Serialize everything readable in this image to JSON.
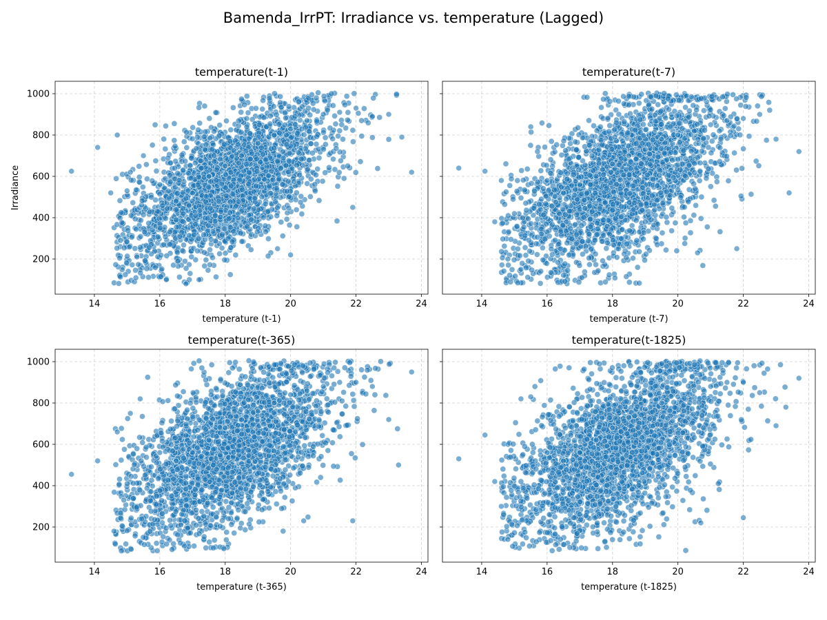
{
  "figure": {
    "title": "Bamenda_IrrPT: Irradiance vs. temperature (Lagged)"
  },
  "chart_data": [
    {
      "type": "scatter",
      "title": "temperature(t-1)",
      "xlabel": "temperature (t-1)",
      "ylabel": "Irradiance",
      "xlim": [
        12.8,
        24.2
      ],
      "ylim": [
        30,
        1060
      ],
      "xticks": [
        14,
        16,
        18,
        20,
        22,
        24
      ],
      "yticks": [
        200,
        400,
        600,
        800,
        1000
      ],
      "grid": true,
      "point_color": "#1f77b4",
      "point_count": 8000,
      "trend": "positive correlation, dense cloud from (15,500) to (22,900)",
      "series": [
        {
          "x": [
            13.3,
            14.1,
            14.5,
            14.7,
            14.8,
            15.0,
            15.1,
            15.3,
            15.5,
            16.0,
            16.5,
            17.0,
            17.5,
            18.0,
            18.5,
            19.0,
            19.5,
            20.0,
            20.5,
            21.0,
            21.5,
            22.0,
            22.5,
            23.0,
            23.4,
            23.7,
            20.0,
            21.9,
            16.2,
            16.8,
            17.2,
            19.6
          ],
          "y": [
            625,
            740,
            520,
            800,
            290,
            530,
            620,
            210,
            700,
            560,
            480,
            520,
            600,
            650,
            700,
            760,
            800,
            830,
            870,
            900,
            910,
            930,
            890,
            900,
            790,
            620,
            220,
            450,
            100,
            80,
            100,
            250
          ]
        }
      ]
    },
    {
      "type": "scatter",
      "title": "temperature(t-7)",
      "xlabel": "temperature (t-7)",
      "ylabel": "",
      "xlim": [
        12.8,
        24.2
      ],
      "ylim": [
        30,
        1060
      ],
      "xticks": [
        14,
        16,
        18,
        20,
        22,
        24
      ],
      "yticks": [
        200,
        400,
        600,
        800,
        1000
      ],
      "grid": true,
      "point_color": "#1f77b4",
      "point_count": 8000,
      "trend": "positive correlation, broader spread",
      "series": [
        {
          "x": [
            13.3,
            14.1,
            14.4,
            14.6,
            14.8,
            15.0,
            15.2,
            15.5,
            16.0,
            16.5,
            17.0,
            17.5,
            18.0,
            18.5,
            19.0,
            19.5,
            20.0,
            20.5,
            21.0,
            21.5,
            22.0,
            22.5,
            23.0,
            23.4,
            23.7,
            21.8,
            20.6
          ],
          "y": [
            640,
            625,
            380,
            580,
            200,
            420,
            150,
            840,
            580,
            520,
            560,
            600,
            660,
            700,
            730,
            780,
            800,
            820,
            850,
            870,
            880,
            900,
            780,
            520,
            720,
            250,
            230
          ]
        }
      ]
    },
    {
      "type": "scatter",
      "title": "temperature(t-365)",
      "xlabel": "temperature (t-365)",
      "ylabel": "",
      "xlim": [
        12.8,
        24.2
      ],
      "ylim": [
        30,
        1060
      ],
      "xticks": [
        14,
        16,
        18,
        20,
        22,
        24
      ],
      "yticks": [
        200,
        400,
        600,
        800,
        1000
      ],
      "grid": true,
      "point_color": "#1f77b4",
      "point_count": 8000,
      "trend": "positive correlation",
      "series": [
        {
          "x": [
            13.3,
            14.1,
            14.6,
            14.7,
            14.9,
            15.1,
            15.4,
            16.0,
            16.5,
            17.0,
            17.5,
            18.0,
            18.5,
            19.0,
            19.5,
            20.0,
            20.5,
            21.0,
            21.5,
            22.0,
            22.5,
            23.0,
            23.3,
            23.7,
            21.9,
            20.4
          ],
          "y": [
            455,
            520,
            180,
            660,
            330,
            750,
            820,
            560,
            520,
            560,
            620,
            680,
            720,
            760,
            800,
            840,
            860,
            880,
            900,
            900,
            880,
            720,
            500,
            950,
            230,
            230
          ]
        }
      ]
    },
    {
      "type": "scatter",
      "title": "temperature(t-1825)",
      "xlabel": "temperature (t-1825)",
      "ylabel": "",
      "xlim": [
        12.8,
        24.2
      ],
      "ylim": [
        30,
        1060
      ],
      "xticks": [
        14,
        16,
        18,
        20,
        22,
        24
      ],
      "yticks": [
        200,
        400,
        600,
        800,
        1000
      ],
      "grid": true,
      "point_color": "#1f77b4",
      "point_count": 8000,
      "trend": "positive correlation",
      "series": [
        {
          "x": [
            13.3,
            14.1,
            14.4,
            14.6,
            14.8,
            15.2,
            15.5,
            16.0,
            16.5,
            17.0,
            17.5,
            18.0,
            18.5,
            19.0,
            19.5,
            20.0,
            20.5,
            21.0,
            21.5,
            22.0,
            22.5,
            23.0,
            23.3,
            23.7,
            22.0,
            20.7
          ],
          "y": [
            530,
            645,
            420,
            300,
            140,
            820,
            830,
            560,
            520,
            560,
            620,
            680,
            730,
            770,
            800,
            830,
            860,
            880,
            900,
            900,
            850,
            690,
            780,
            920,
            245,
            220
          ]
        }
      ]
    }
  ]
}
